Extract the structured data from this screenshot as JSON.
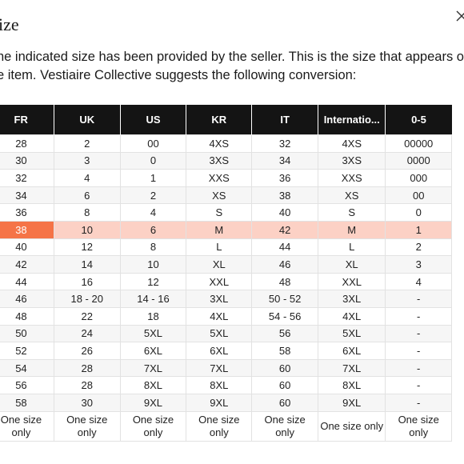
{
  "modal": {
    "title": "ize",
    "description_line1": "he indicated size has been provided by the seller. This is the size that appears on",
    "description_line2": "e item. Vestiaire Collective suggests the following conversion:"
  },
  "table": {
    "columns": [
      "FR",
      "UK",
      "US",
      "KR",
      "IT",
      "Internatio...",
      "0-5"
    ],
    "highlighted_row_index": 5,
    "rows": [
      [
        "28",
        "2",
        "00",
        "4XS",
        "32",
        "4XS",
        "00000"
      ],
      [
        "30",
        "3",
        "0",
        "3XS",
        "34",
        "3XS",
        "0000"
      ],
      [
        "32",
        "4",
        "1",
        "XXS",
        "36",
        "XXS",
        "000"
      ],
      [
        "34",
        "6",
        "2",
        "XS",
        "38",
        "XS",
        "00"
      ],
      [
        "36",
        "8",
        "4",
        "S",
        "40",
        "S",
        "0"
      ],
      [
        "38",
        "10",
        "6",
        "M",
        "42",
        "M",
        "1"
      ],
      [
        "40",
        "12",
        "8",
        "L",
        "44",
        "L",
        "2"
      ],
      [
        "42",
        "14",
        "10",
        "XL",
        "46",
        "XL",
        "3"
      ],
      [
        "44",
        "16",
        "12",
        "XXL",
        "48",
        "XXL",
        "4"
      ],
      [
        "46",
        "18 - 20",
        "14 - 16",
        "3XL",
        "50 - 52",
        "3XL",
        "-"
      ],
      [
        "48",
        "22",
        "18",
        "4XL",
        "54 - 56",
        "4XL",
        "-"
      ],
      [
        "50",
        "24",
        "5XL",
        "5XL",
        "56",
        "5XL",
        "-"
      ],
      [
        "52",
        "26",
        "6XL",
        "6XL",
        "58",
        "6XL",
        "-"
      ],
      [
        "54",
        "28",
        "7XL",
        "7XL",
        "60",
        "7XL",
        "-"
      ],
      [
        "56",
        "28",
        "8XL",
        "8XL",
        "60",
        "8XL",
        "-"
      ],
      [
        "58",
        "30",
        "9XL",
        "9XL",
        "60",
        "9XL",
        "-"
      ],
      [
        "One size only",
        "One size only",
        "One size only",
        "One size only",
        "One size only",
        "One size only",
        "One size only"
      ]
    ]
  },
  "colors": {
    "header_bg": "#141414",
    "highlight_row_bg": "#fcd1c5",
    "highlight_cell_bg": "#f57447",
    "alt_row_bg": "#f6f6f6"
  },
  "icons": {
    "close": "close-icon"
  }
}
